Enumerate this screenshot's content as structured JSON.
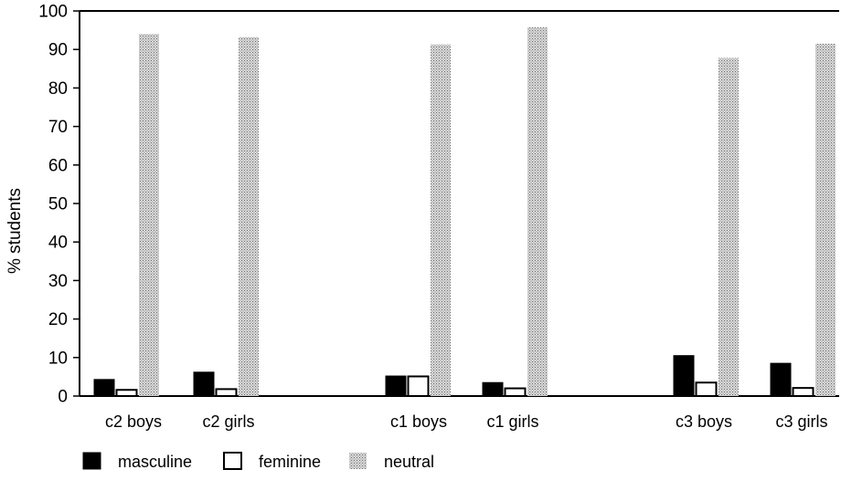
{
  "chart_data": {
    "type": "bar",
    "title": "",
    "xlabel": "",
    "ylabel": "% students",
    "ylim": [
      0,
      100
    ],
    "yticks": [
      0,
      10,
      20,
      30,
      40,
      50,
      60,
      70,
      80,
      90,
      100
    ],
    "grid": false,
    "legend_position": "bottom-left",
    "categories": [
      "c2 boys",
      "c2 girls",
      "c1 boys",
      "c1 girls",
      "c3 boys",
      "c3 girls"
    ],
    "series": [
      {
        "name": "masculine",
        "values": [
          4.3,
          6.2,
          5.2,
          3.5,
          10.5,
          8.5
        ],
        "color": "#000000",
        "pattern": "solid"
      },
      {
        "name": "feminine",
        "values": [
          1.6,
          1.8,
          5.1,
          2.0,
          3.5,
          2.1
        ],
        "color": "#ffffff",
        "pattern": "outline"
      },
      {
        "name": "neutral",
        "values": [
          94,
          93.2,
          91.3,
          95.8,
          87.8,
          91.5
        ],
        "color": "#bdbdbd",
        "pattern": "stipple"
      }
    ]
  }
}
